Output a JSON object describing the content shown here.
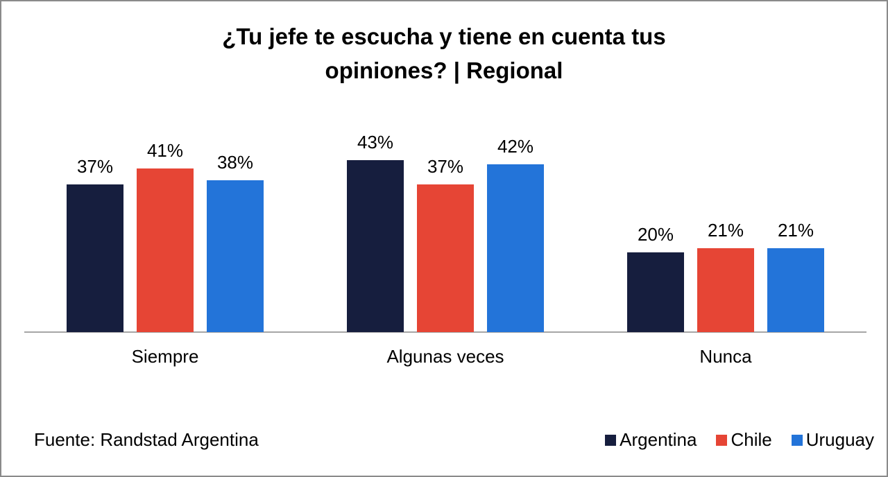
{
  "page": {
    "background": "#FFFFFF",
    "border_color": "#8A8A8A",
    "axis_line_color": "#A6A6A6"
  },
  "chart_data": {
    "type": "bar",
    "title": "¿Tu jefe te escucha y tiene en cuenta tus opiniones? | Regional",
    "title_lines": [
      "¿Tu jefe te escucha y tiene en cuenta tus",
      "opiniones? | Regional"
    ],
    "categories": [
      "Siempre",
      "Algunas veces",
      "Nunca"
    ],
    "series": [
      {
        "name": "Argentina",
        "color": "#161E3E",
        "values": [
          37,
          43,
          20
        ]
      },
      {
        "name": "Chile",
        "color": "#E64535",
        "values": [
          41,
          37,
          21
        ]
      },
      {
        "name": "Uruguay",
        "color": "#2374D9",
        "values": [
          38,
          42,
          21
        ]
      }
    ],
    "value_suffix": "%",
    "ylim": [
      0,
      50
    ],
    "grid": false,
    "data_labels": true,
    "legend_position": "bottom-right"
  },
  "footer": {
    "source": "Fuente: Randstad Argentina"
  }
}
